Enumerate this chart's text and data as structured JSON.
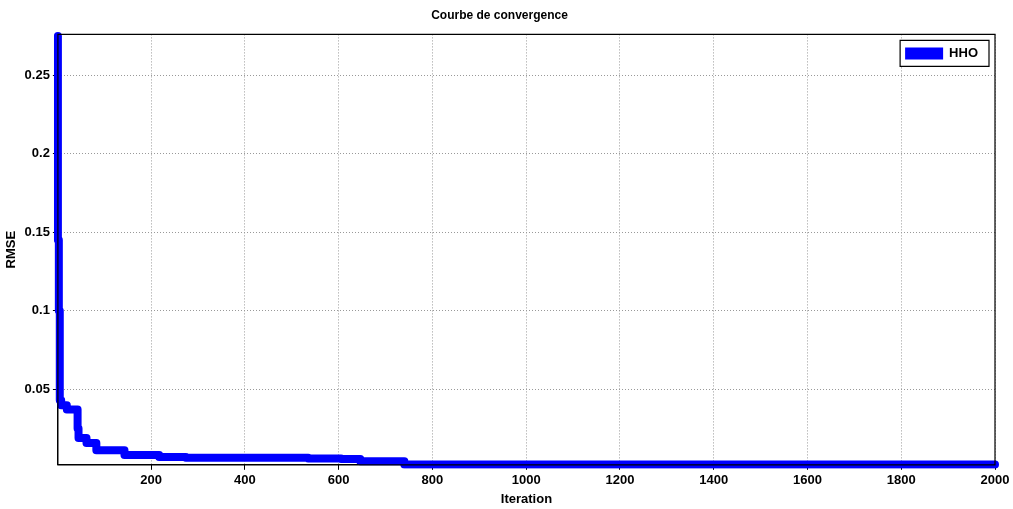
{
  "chart_data": {
    "type": "step",
    "title": "Courbe de convergence",
    "xlabel": "Iteration",
    "ylabel": "RMSE",
    "xlim": [
      1,
      2000
    ],
    "xticks": [
      200,
      400,
      600,
      800,
      1000,
      1200,
      1400,
      1600,
      1800,
      2000
    ],
    "ylim": [
      0.0018,
      0.276
    ],
    "yticks": [
      0.05,
      0.1,
      0.15,
      0.2,
      0.25
    ],
    "grid": true,
    "legend": "top right",
    "marker": "none",
    "line_style": "solid",
    "series": [
      {
        "name": "HHO",
        "color": "#0000ff",
        "x": [
          1,
          3,
          5,
          8,
          20,
          43,
          45,
          62,
          83,
          143,
          217,
          274,
          535,
          605,
          646,
          740,
          830,
          2000
        ],
        "values": [
          0.275,
          0.145,
          0.1,
          0.043,
          0.0397,
          0.037,
          0.025,
          0.0188,
          0.0157,
          0.011,
          0.0081,
          0.0068,
          0.0063,
          0.0058,
          0.0055,
          0.004,
          0.002,
          0.002
        ]
      }
    ]
  }
}
